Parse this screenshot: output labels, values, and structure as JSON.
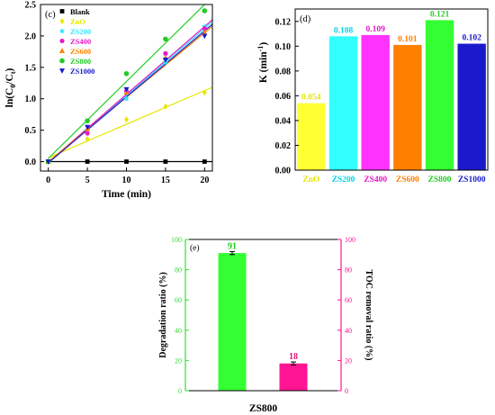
{
  "chart_data": [
    {
      "panel_label": "(c)",
      "type": "scatter",
      "xlabel": "Time (min)",
      "ylabel_main": "ln(C",
      "ylabel_sub1": "0",
      "ylabel_mid": "/C",
      "ylabel_sub2": "t",
      "ylabel_end": ")",
      "xlim": [
        -1,
        21
      ],
      "ylim": [
        -0.15,
        2.5
      ],
      "xticks": [
        0,
        5,
        10,
        15,
        20
      ],
      "yticks": [
        0.0,
        0.5,
        1.0,
        1.5,
        2.0,
        2.5
      ],
      "ytick_labels": [
        "0.0",
        "0.5",
        "1.0",
        "1.5",
        "2.0",
        "2.5"
      ],
      "legend_position": "top-left",
      "series": [
        {
          "name": "Blank",
          "color": "#000000",
          "marker": "square",
          "x": [
            0,
            5,
            10,
            15,
            20
          ],
          "values": [
            0.0,
            0.0,
            0.0,
            0.0,
            0.0
          ],
          "fit": [
            0.0,
            0.0
          ]
        },
        {
          "name": "ZnO",
          "color": "#e6e600",
          "marker": "diamond",
          "x": [
            0,
            5,
            10,
            15,
            20
          ],
          "values": [
            0.0,
            0.36,
            0.67,
            0.88,
            1.1
          ],
          "fit": [
            0.06,
            1.13
          ]
        },
        {
          "name": "ZS200",
          "color": "#33e6ff",
          "marker": "star",
          "x": [
            0,
            5,
            10,
            15,
            20
          ],
          "values": [
            0.0,
            0.5,
            1.0,
            1.58,
            2.15
          ],
          "fit": [
            -0.02,
            2.12
          ]
        },
        {
          "name": "ZS400",
          "color": "#e619c8",
          "marker": "hexagon",
          "x": [
            0,
            5,
            10,
            15,
            20
          ],
          "values": [
            0.0,
            0.45,
            1.12,
            1.72,
            2.12
          ],
          "fit": [
            -0.01,
            2.15
          ]
        },
        {
          "name": "ZS600",
          "color": "#ff8000",
          "marker": "triangle-up",
          "x": [
            0,
            5,
            10,
            15,
            20
          ],
          "values": [
            0.0,
            0.52,
            1.1,
            1.65,
            2.05
          ],
          "fit": [
            0.0,
            2.05
          ]
        },
        {
          "name": "ZS800",
          "color": "#22cc22",
          "marker": "circle",
          "x": [
            0,
            5,
            10,
            15,
            20
          ],
          "values": [
            0.0,
            0.65,
            1.4,
            1.95,
            2.4
          ],
          "fit": [
            0.05,
            2.5
          ]
        },
        {
          "name": "ZS1000",
          "color": "#1a1acc",
          "marker": "triangle-down",
          "x": [
            0,
            5,
            10,
            15,
            20
          ],
          "values": [
            0.0,
            0.55,
            1.15,
            1.62,
            2.0
          ],
          "fit": [
            -0.02,
            2.08
          ]
        }
      ]
    },
    {
      "panel_label": "(d)",
      "type": "bar",
      "ylabel_main": "K (min",
      "ylabel_sup": "-1",
      "ylabel_end": ")",
      "ylim": [
        0.0,
        0.13
      ],
      "yticks": [
        0.0,
        0.02,
        0.04,
        0.06,
        0.08,
        0.1,
        0.12
      ],
      "ytick_labels": [
        "0.00",
        "0.02",
        "0.04",
        "0.06",
        "0.08",
        "0.10",
        "0.12"
      ],
      "categories": [
        "ZnO",
        "ZS200",
        "ZS400",
        "ZS600",
        "ZS800",
        "ZS1000"
      ],
      "values": [
        0.054,
        0.108,
        0.109,
        0.101,
        0.121,
        0.102
      ],
      "value_labels": [
        "0.054",
        "0.108",
        "0.109",
        "0.101",
        "0.121",
        "0.102"
      ],
      "colors": [
        "#ffff33",
        "#33ffff",
        "#ff33ff",
        "#ff8000",
        "#33ff33",
        "#1a1acc"
      ],
      "label_colors": [
        "#e6e600",
        "#00d5e6",
        "#e619c8",
        "#ff8000",
        "#22cc22",
        "#1a1acc"
      ]
    },
    {
      "panel_label": "(e)",
      "type": "bar",
      "xlabel": "ZS800",
      "ylabel_left": "Degradation ratio (%)",
      "ylabel_right": "TOC removal ratio (%)",
      "ylim": [
        0,
        100
      ],
      "yticks": [
        0,
        20,
        40,
        60,
        80,
        100
      ],
      "ytick_labels": [
        "0",
        "20",
        "40",
        "60",
        "80",
        "100"
      ],
      "bars": [
        {
          "value": 91,
          "label": "91",
          "color": "#33ff33",
          "label_color": "#22cc22",
          "error": 1.0
        },
        {
          "value": 18,
          "label": "18",
          "color": "#ff1493",
          "label_color": "#e6197d",
          "error": 1.0
        }
      ],
      "left_axis_color": "#33dd33",
      "right_axis_color": "#ff1493"
    }
  ]
}
